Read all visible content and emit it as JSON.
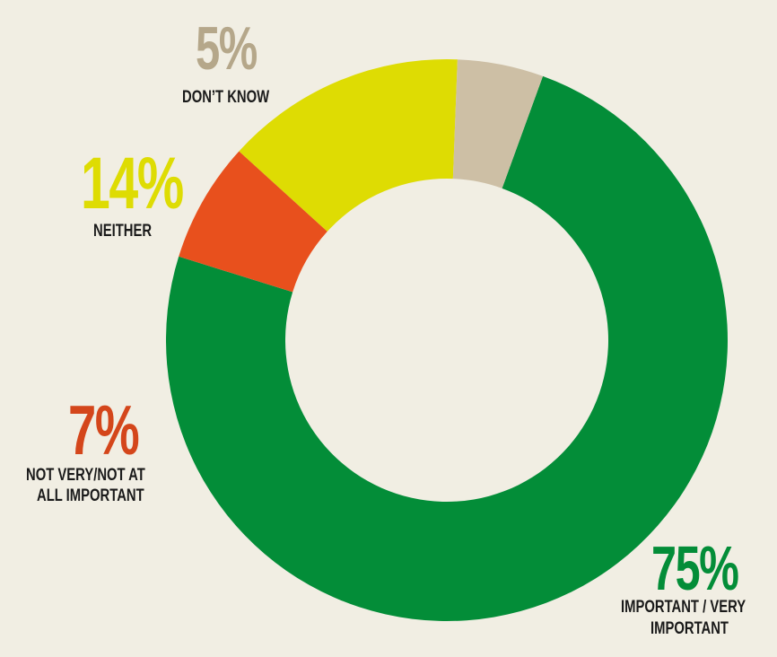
{
  "chart_data": {
    "type": "pie",
    "donut": true,
    "slices": [
      {
        "label": "IMPORTANT / VERY IMPORTANT",
        "value": 75,
        "display": "75%",
        "color": "#038d38"
      },
      {
        "label": "NOT VERY/NOT AT ALL IMPORTANT",
        "value": 7,
        "display": "7%",
        "color": "#e8501d"
      },
      {
        "label": "NEITHER",
        "value": 14,
        "display": "14%",
        "color": "#dedc03"
      },
      {
        "label": "DON’T KNOW",
        "value": 5,
        "display": "5%",
        "color": "#cdbfa5"
      }
    ],
    "labels": {
      "important": {
        "pct": "75%",
        "line1": "IMPORTANT / VERY",
        "line2": "IMPORTANT"
      },
      "not_important": {
        "pct": "7%",
        "line1": "NOT VERY/NOT AT",
        "line2": "ALL IMPORTANT"
      },
      "neither": {
        "pct": "14%",
        "line1": "NEITHER"
      },
      "dont_know": {
        "pct": "5%",
        "line1": "DON’T KNOW"
      }
    }
  },
  "colors": {
    "background": "#f1eee3",
    "important": "#038d38",
    "not_important": "#e8501d",
    "neither": "#dedc03",
    "dont_know": "#cdbfa5"
  }
}
